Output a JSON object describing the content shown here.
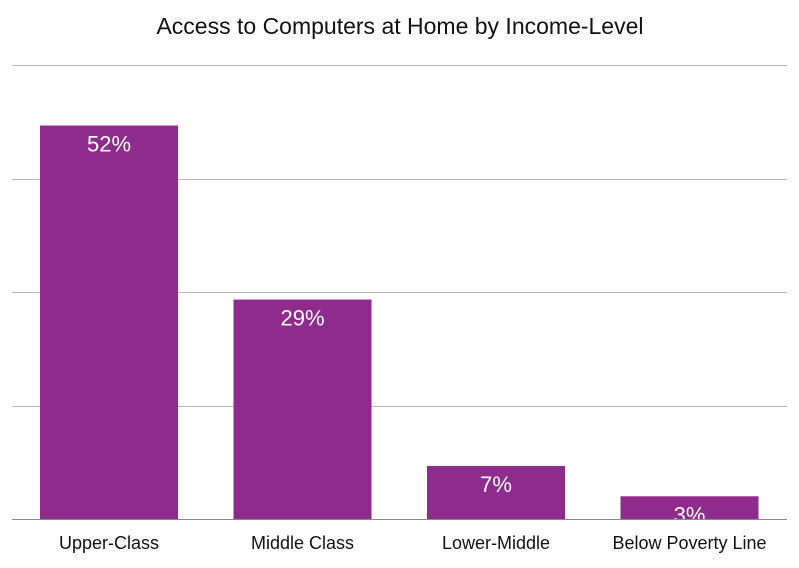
{
  "chart_data": {
    "type": "bar",
    "title": "Access to Computers at Home by Income-Level",
    "categories": [
      "Upper-Class",
      "Middle Class",
      "Lower-Middle",
      "Below Poverty Line"
    ],
    "values": [
      52,
      29,
      7,
      3
    ],
    "data_labels": [
      "52%",
      "29%",
      "7%",
      "3%"
    ],
    "xlabel": "",
    "ylabel": "",
    "ylim": [
      0,
      60
    ],
    "y_ticks_shown": false,
    "grid": true,
    "legend": "none",
    "bar_color": "#8e2b8c"
  }
}
